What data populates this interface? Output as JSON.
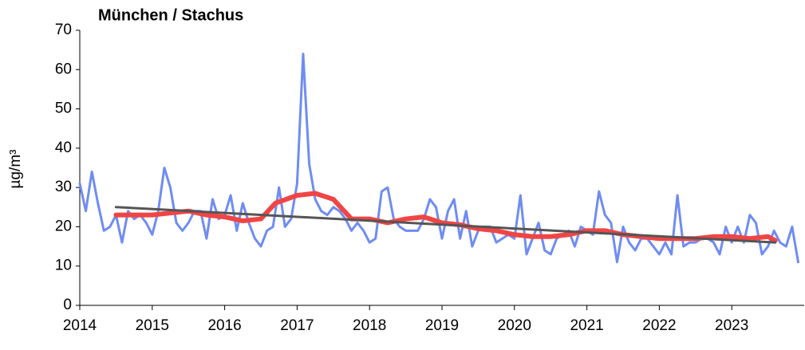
{
  "chart_data": {
    "type": "line",
    "title": "München / Stachus",
    "ylabel": "µg/m³",
    "xlim": [
      2014,
      2024
    ],
    "ylim": [
      0,
      70
    ],
    "xticks": [
      2014,
      2015,
      2016,
      2017,
      2018,
      2019,
      2020,
      2021,
      2022,
      2023
    ],
    "yticks": [
      0,
      10,
      20,
      30,
      40,
      50,
      60,
      70
    ],
    "series": [
      {
        "color": "#6f8cf2",
        "width": 3,
        "x": [
          2014,
          2014.083,
          2014.167,
          2014.25,
          2014.333,
          2014.417,
          2014.5,
          2014.583,
          2014.667,
          2014.75,
          2014.833,
          2014.917,
          2015,
          2015.083,
          2015.167,
          2015.25,
          2015.333,
          2015.417,
          2015.5,
          2015.583,
          2015.667,
          2015.75,
          2015.833,
          2015.917,
          2016,
          2016.083,
          2016.167,
          2016.25,
          2016.333,
          2016.417,
          2016.5,
          2016.583,
          2016.667,
          2016.75,
          2016.833,
          2016.917,
          2017,
          2017.083,
          2017.167,
          2017.25,
          2017.333,
          2017.417,
          2017.5,
          2017.583,
          2017.667,
          2017.75,
          2017.833,
          2017.917,
          2018,
          2018.083,
          2018.167,
          2018.25,
          2018.333,
          2018.417,
          2018.5,
          2018.583,
          2018.667,
          2018.75,
          2018.833,
          2018.917,
          2019,
          2019.083,
          2019.167,
          2019.25,
          2019.333,
          2019.417,
          2019.5,
          2019.583,
          2019.667,
          2019.75,
          2019.833,
          2019.917,
          2020,
          2020.083,
          2020.167,
          2020.25,
          2020.333,
          2020.417,
          2020.5,
          2020.583,
          2020.667,
          2020.75,
          2020.833,
          2020.917,
          2021,
          2021.083,
          2021.167,
          2021.25,
          2021.333,
          2021.417,
          2021.5,
          2021.583,
          2021.667,
          2021.75,
          2021.833,
          2021.917,
          2022,
          2022.083,
          2022.167,
          2022.25,
          2022.333,
          2022.417,
          2022.5,
          2022.583,
          2022.667,
          2022.75,
          2022.833,
          2022.917,
          2023,
          2023.083,
          2023.167,
          2023.25,
          2023.333,
          2023.417,
          2023.5,
          2023.583,
          2023.667,
          2023.75,
          2023.833,
          2023.917
        ],
        "values": [
          31,
          24,
          34,
          26,
          19,
          20,
          23,
          16,
          24,
          22,
          23,
          21,
          18,
          24,
          35,
          30,
          21,
          19,
          21,
          24,
          24,
          17,
          27,
          22,
          23,
          28,
          19,
          26,
          21,
          17,
          15,
          19,
          20,
          30,
          20,
          22,
          31,
          64,
          36,
          27,
          24,
          23,
          25,
          24,
          22,
          19,
          21,
          19,
          16,
          17,
          29,
          30,
          22,
          20,
          19,
          19,
          19,
          22,
          27,
          25,
          17,
          24,
          27,
          17,
          24,
          15,
          19,
          20,
          20,
          16,
          17,
          18,
          17,
          28,
          13,
          17,
          21,
          14,
          13,
          17,
          18,
          19,
          15,
          20,
          19,
          18,
          29,
          23,
          21,
          11,
          20,
          16,
          14,
          17,
          17,
          15,
          13,
          16,
          13,
          28,
          15,
          16,
          16,
          17,
          17,
          16,
          13,
          20,
          16,
          20,
          16,
          23,
          21,
          13,
          15,
          19,
          16,
          15,
          20,
          11
        ]
      },
      {
        "color": "#f04545",
        "width": 6,
        "x": [
          2014.5,
          2014.75,
          2015,
          2015.25,
          2015.5,
          2015.75,
          2016,
          2016.25,
          2016.5,
          2016.7,
          2017,
          2017.25,
          2017.5,
          2017.75,
          2018,
          2018.25,
          2018.5,
          2018.75,
          2019,
          2019.25,
          2019.5,
          2019.75,
          2020,
          2020.25,
          2020.5,
          2020.75,
          2021,
          2021.25,
          2021.5,
          2021.75,
          2022,
          2022.25,
          2022.5,
          2022.75,
          2023,
          2023.25,
          2023.5,
          2023.6
        ],
        "values": [
          23,
          23,
          23,
          23.5,
          24,
          23,
          22.5,
          21.5,
          22,
          26,
          28,
          28.5,
          27,
          22,
          22,
          21,
          22,
          22.5,
          21,
          20.5,
          19.5,
          19,
          18,
          17.5,
          17.5,
          18,
          19,
          19,
          18,
          17.5,
          17,
          17,
          17,
          17.5,
          17.5,
          17,
          17.5,
          16.5
        ]
      },
      {
        "color": "#555555",
        "width": 3,
        "x": [
          2014.5,
          2023.6
        ],
        "values": [
          25,
          16
        ]
      }
    ]
  }
}
